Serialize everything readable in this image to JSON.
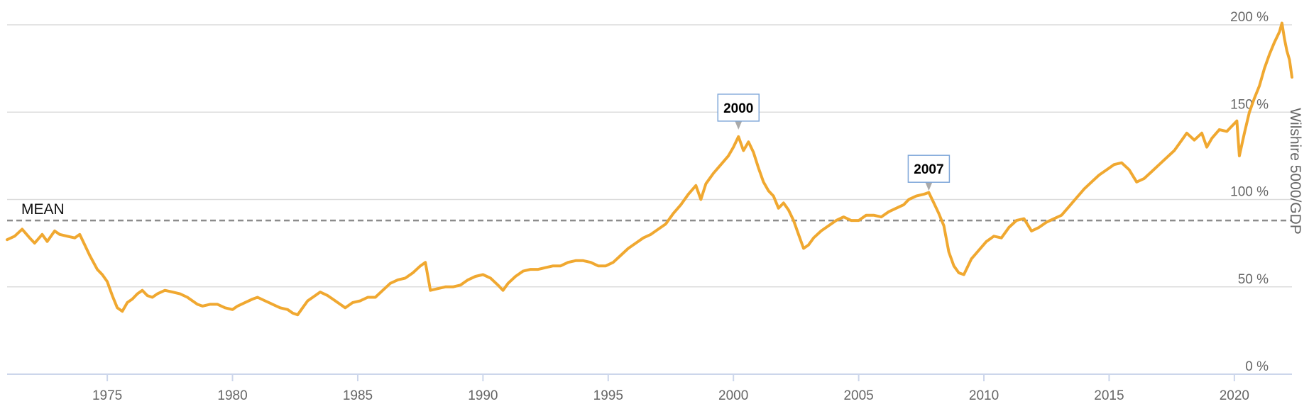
{
  "chart_data": {
    "type": "line",
    "title": "",
    "ylabel": "Wilshire 5000/GDP",
    "xlim": [
      1971.0,
      2022.3
    ],
    "ylim": [
      0,
      200
    ],
    "x_ticks": [
      1975,
      1980,
      1985,
      1990,
      1995,
      2000,
      2005,
      2010,
      2015,
      2020
    ],
    "y_ticks": [
      0,
      50,
      100,
      150,
      200
    ],
    "y_tick_labels": [
      "0 %",
      "50 %",
      "100 %",
      "150 %",
      "200 %"
    ],
    "grid": "horizontal",
    "mean": {
      "label": "MEAN",
      "value": 88
    },
    "annotations": [
      {
        "label": "2000",
        "x": 2000.2,
        "y": 140
      },
      {
        "label": "2007",
        "x": 2007.8,
        "y": 105
      }
    ],
    "series": [
      {
        "color": "#F0A830",
        "points": [
          [
            1971.0,
            77
          ],
          [
            1971.3,
            79
          ],
          [
            1971.6,
            83
          ],
          [
            1971.9,
            78
          ],
          [
            1972.1,
            75
          ],
          [
            1972.4,
            80
          ],
          [
            1972.6,
            76
          ],
          [
            1972.9,
            82
          ],
          [
            1973.1,
            80
          ],
          [
            1973.4,
            79
          ],
          [
            1973.7,
            78
          ],
          [
            1973.9,
            80
          ],
          [
            1974.1,
            74
          ],
          [
            1974.3,
            68
          ],
          [
            1974.6,
            60
          ],
          [
            1974.8,
            57
          ],
          [
            1975.0,
            53
          ],
          [
            1975.2,
            45
          ],
          [
            1975.4,
            38
          ],
          [
            1975.6,
            36
          ],
          [
            1975.8,
            41
          ],
          [
            1976.0,
            43
          ],
          [
            1976.2,
            46
          ],
          [
            1976.4,
            48
          ],
          [
            1976.6,
            45
          ],
          [
            1976.8,
            44
          ],
          [
            1977.0,
            46
          ],
          [
            1977.3,
            48
          ],
          [
            1977.6,
            47
          ],
          [
            1977.9,
            46
          ],
          [
            1978.2,
            44
          ],
          [
            1978.4,
            42
          ],
          [
            1978.6,
            40
          ],
          [
            1978.8,
            39
          ],
          [
            1979.1,
            40
          ],
          [
            1979.4,
            40
          ],
          [
            1979.7,
            38
          ],
          [
            1980.0,
            37
          ],
          [
            1980.2,
            39
          ],
          [
            1980.5,
            41
          ],
          [
            1980.8,
            43
          ],
          [
            1981.0,
            44
          ],
          [
            1981.3,
            42
          ],
          [
            1981.6,
            40
          ],
          [
            1981.9,
            38
          ],
          [
            1982.2,
            37
          ],
          [
            1982.4,
            35
          ],
          [
            1982.6,
            34
          ],
          [
            1982.8,
            38
          ],
          [
            1983.0,
            42
          ],
          [
            1983.3,
            45
          ],
          [
            1983.5,
            47
          ],
          [
            1983.8,
            45
          ],
          [
            1984.0,
            43
          ],
          [
            1984.3,
            40
          ],
          [
            1984.5,
            38
          ],
          [
            1984.8,
            41
          ],
          [
            1985.1,
            42
          ],
          [
            1985.4,
            44
          ],
          [
            1985.7,
            44
          ],
          [
            1986.0,
            48
          ],
          [
            1986.3,
            52
          ],
          [
            1986.6,
            54
          ],
          [
            1986.9,
            55
          ],
          [
            1987.2,
            58
          ],
          [
            1987.5,
            62
          ],
          [
            1987.7,
            64
          ],
          [
            1987.9,
            48
          ],
          [
            1988.2,
            49
          ],
          [
            1988.5,
            50
          ],
          [
            1988.8,
            50
          ],
          [
            1989.1,
            51
          ],
          [
            1989.4,
            54
          ],
          [
            1989.7,
            56
          ],
          [
            1990.0,
            57
          ],
          [
            1990.3,
            55
          ],
          [
            1990.6,
            51
          ],
          [
            1990.8,
            48
          ],
          [
            1991.0,
            52
          ],
          [
            1991.3,
            56
          ],
          [
            1991.6,
            59
          ],
          [
            1991.9,
            60
          ],
          [
            1992.2,
            60
          ],
          [
            1992.5,
            61
          ],
          [
            1992.8,
            62
          ],
          [
            1993.1,
            62
          ],
          [
            1993.4,
            64
          ],
          [
            1993.7,
            65
          ],
          [
            1994.0,
            65
          ],
          [
            1994.3,
            64
          ],
          [
            1994.6,
            62
          ],
          [
            1994.9,
            62
          ],
          [
            1995.2,
            64
          ],
          [
            1995.5,
            68
          ],
          [
            1995.8,
            72
          ],
          [
            1996.1,
            75
          ],
          [
            1996.4,
            78
          ],
          [
            1996.7,
            80
          ],
          [
            1997.0,
            83
          ],
          [
            1997.3,
            86
          ],
          [
            1997.6,
            92
          ],
          [
            1997.9,
            97
          ],
          [
            1998.2,
            103
          ],
          [
            1998.5,
            108
          ],
          [
            1998.7,
            100
          ],
          [
            1998.9,
            109
          ],
          [
            1999.2,
            115
          ],
          [
            1999.5,
            120
          ],
          [
            1999.8,
            125
          ],
          [
            2000.0,
            130
          ],
          [
            2000.2,
            136
          ],
          [
            2000.4,
            128
          ],
          [
            2000.6,
            133
          ],
          [
            2000.8,
            127
          ],
          [
            2001.0,
            118
          ],
          [
            2001.2,
            110
          ],
          [
            2001.4,
            105
          ],
          [
            2001.6,
            102
          ],
          [
            2001.8,
            95
          ],
          [
            2002.0,
            98
          ],
          [
            2002.2,
            94
          ],
          [
            2002.4,
            88
          ],
          [
            2002.6,
            80
          ],
          [
            2002.8,
            72
          ],
          [
            2003.0,
            74
          ],
          [
            2003.2,
            78
          ],
          [
            2003.5,
            82
          ],
          [
            2003.8,
            85
          ],
          [
            2004.1,
            88
          ],
          [
            2004.4,
            90
          ],
          [
            2004.7,
            88
          ],
          [
            2005.0,
            88
          ],
          [
            2005.3,
            91
          ],
          [
            2005.6,
            91
          ],
          [
            2005.9,
            90
          ],
          [
            2006.2,
            93
          ],
          [
            2006.5,
            95
          ],
          [
            2006.8,
            97
          ],
          [
            2007.0,
            100
          ],
          [
            2007.3,
            102
          ],
          [
            2007.6,
            103
          ],
          [
            2007.8,
            104
          ],
          [
            2008.0,
            98
          ],
          [
            2008.2,
            92
          ],
          [
            2008.4,
            85
          ],
          [
            2008.6,
            70
          ],
          [
            2008.8,
            62
          ],
          [
            2009.0,
            58
          ],
          [
            2009.2,
            57
          ],
          [
            2009.5,
            66
          ],
          [
            2009.8,
            71
          ],
          [
            2010.1,
            76
          ],
          [
            2010.4,
            79
          ],
          [
            2010.7,
            78
          ],
          [
            2011.0,
            84
          ],
          [
            2011.3,
            88
          ],
          [
            2011.6,
            89
          ],
          [
            2011.9,
            82
          ],
          [
            2012.2,
            84
          ],
          [
            2012.5,
            87
          ],
          [
            2012.8,
            89
          ],
          [
            2013.1,
            91
          ],
          [
            2013.4,
            96
          ],
          [
            2013.7,
            101
          ],
          [
            2014.0,
            106
          ],
          [
            2014.3,
            110
          ],
          [
            2014.6,
            114
          ],
          [
            2014.9,
            117
          ],
          [
            2015.2,
            120
          ],
          [
            2015.5,
            121
          ],
          [
            2015.8,
            117
          ],
          [
            2016.1,
            110
          ],
          [
            2016.4,
            112
          ],
          [
            2016.7,
            116
          ],
          [
            2017.0,
            120
          ],
          [
            2017.3,
            124
          ],
          [
            2017.6,
            128
          ],
          [
            2017.9,
            134
          ],
          [
            2018.1,
            138
          ],
          [
            2018.4,
            134
          ],
          [
            2018.7,
            138
          ],
          [
            2018.9,
            130
          ],
          [
            2019.1,
            135
          ],
          [
            2019.4,
            140
          ],
          [
            2019.7,
            139
          ],
          [
            2019.9,
            142
          ],
          [
            2020.1,
            145
          ],
          [
            2020.2,
            125
          ],
          [
            2020.4,
            138
          ],
          [
            2020.6,
            150
          ],
          [
            2020.8,
            158
          ],
          [
            2021.0,
            165
          ],
          [
            2021.2,
            175
          ],
          [
            2021.4,
            183
          ],
          [
            2021.6,
            190
          ],
          [
            2021.8,
            196
          ],
          [
            2021.9,
            201
          ],
          [
            2022.0,
            192
          ],
          [
            2022.1,
            185
          ],
          [
            2022.2,
            180
          ],
          [
            2022.3,
            170
          ]
        ]
      }
    ]
  }
}
